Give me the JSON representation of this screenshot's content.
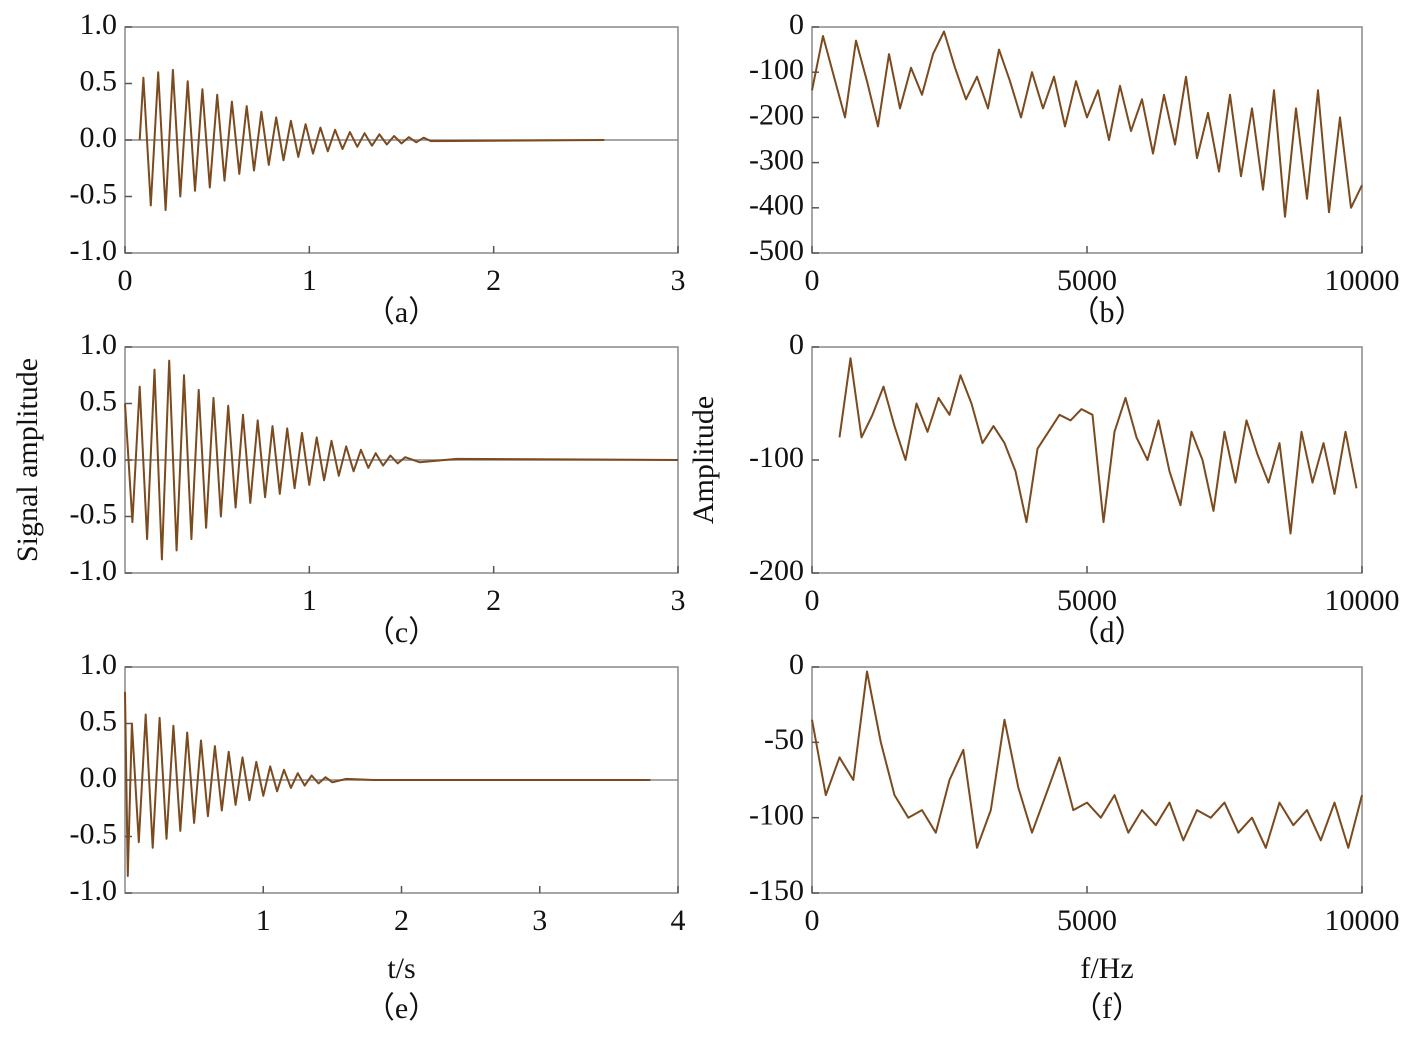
{
  "chart_data": [
    {
      "type": "line",
      "caption": "（a）",
      "color": "#7b4a1e",
      "xlim": [
        0,
        3
      ],
      "xticks": [
        0,
        1,
        2,
        3
      ],
      "ylim": [
        -1,
        1
      ],
      "yticks": [
        {
          "value": 1,
          "label": "1.0"
        },
        0.5,
        {
          "value": 0,
          "label": "0.0"
        },
        -0.5,
        {
          "value": -1,
          "label": "-1.0"
        }
      ],
      "x": [
        0.08,
        0.1,
        0.14,
        0.18,
        0.22,
        0.26,
        0.3,
        0.34,
        0.38,
        0.42,
        0.46,
        0.5,
        0.54,
        0.58,
        0.62,
        0.66,
        0.7,
        0.74,
        0.78,
        0.82,
        0.86,
        0.9,
        0.94,
        0.98,
        1.02,
        1.06,
        1.1,
        1.14,
        1.18,
        1.22,
        1.26,
        1.3,
        1.34,
        1.38,
        1.42,
        1.46,
        1.5,
        1.54,
        1.58,
        1.62,
        1.66,
        2.6
      ],
      "values": [
        0,
        0.55,
        -0.58,
        0.6,
        -0.62,
        0.62,
        -0.5,
        0.52,
        -0.45,
        0.45,
        -0.42,
        0.4,
        -0.36,
        0.34,
        -0.3,
        0.3,
        -0.27,
        0.25,
        -0.22,
        0.2,
        -0.18,
        0.17,
        -0.15,
        0.14,
        -0.12,
        0.11,
        -0.1,
        0.09,
        -0.08,
        0.07,
        -0.06,
        0.06,
        -0.05,
        0.05,
        -0.04,
        0.035,
        -0.03,
        0.025,
        -0.02,
        0.02,
        -0.01,
        0
      ]
    },
    {
      "type": "line",
      "caption": "（b）",
      "color": "#7b4a1e",
      "xlim": [
        0,
        10000
      ],
      "xticks": [
        0,
        5000,
        10000
      ],
      "ylim": [
        -500,
        0
      ],
      "yticks": [
        0,
        -100,
        -200,
        -300,
        -400,
        -500
      ],
      "x": [
        0,
        200,
        400,
        600,
        800,
        1000,
        1200,
        1400,
        1600,
        1800,
        2000,
        2200,
        2400,
        2600,
        2800,
        3000,
        3200,
        3400,
        3600,
        3800,
        4000,
        4200,
        4400,
        4600,
        4800,
        5000,
        5200,
        5400,
        5600,
        5800,
        6000,
        6200,
        6400,
        6600,
        6800,
        7000,
        7200,
        7400,
        7600,
        7800,
        8000,
        8200,
        8400,
        8600,
        8800,
        9000,
        9200,
        9400,
        9600,
        9800,
        10000
      ],
      "values": [
        -140,
        -20,
        -110,
        -200,
        -30,
        -120,
        -220,
        -60,
        -180,
        -90,
        -150,
        -60,
        -10,
        -90,
        -160,
        -110,
        -180,
        -50,
        -120,
        -200,
        -100,
        -180,
        -110,
        -220,
        -120,
        -200,
        -140,
        -250,
        -130,
        -230,
        -160,
        -280,
        -150,
        -260,
        -110,
        -290,
        -190,
        -320,
        -150,
        -330,
        -180,
        -360,
        -140,
        -420,
        -180,
        -380,
        -140,
        -410,
        -200,
        -400,
        -350
      ]
    },
    {
      "type": "line",
      "caption": "（c）",
      "color": "#7b4a1e",
      "ylabel": "Signal amplitude",
      "xlim": [
        0,
        3
      ],
      "xticks": [
        1,
        2,
        3
      ],
      "ylim": [
        -1,
        1
      ],
      "yticks": [
        {
          "value": 1,
          "label": "1.0"
        },
        0.5,
        {
          "value": 0,
          "label": "0.0"
        },
        -0.5,
        {
          "value": -1,
          "label": "-1.0"
        }
      ],
      "x": [
        0,
        0.04,
        0.08,
        0.12,
        0.16,
        0.2,
        0.24,
        0.28,
        0.32,
        0.36,
        0.4,
        0.44,
        0.48,
        0.52,
        0.56,
        0.6,
        0.64,
        0.68,
        0.72,
        0.76,
        0.8,
        0.84,
        0.88,
        0.92,
        0.96,
        1.0,
        1.04,
        1.08,
        1.12,
        1.16,
        1.2,
        1.24,
        1.28,
        1.32,
        1.36,
        1.4,
        1.44,
        1.48,
        1.52,
        1.6,
        1.8,
        3.0
      ],
      "values": [
        0.5,
        -0.55,
        0.65,
        -0.7,
        0.8,
        -0.88,
        0.88,
        -0.8,
        0.75,
        -0.7,
        0.62,
        -0.6,
        0.55,
        -0.5,
        0.48,
        -0.42,
        0.4,
        -0.38,
        0.35,
        -0.33,
        0.3,
        -0.3,
        0.28,
        -0.25,
        0.24,
        -0.22,
        0.2,
        -0.18,
        0.17,
        -0.14,
        0.12,
        -0.1,
        0.09,
        -0.07,
        0.06,
        -0.05,
        0.04,
        -0.03,
        0.025,
        -0.02,
        0.01,
        0
      ]
    },
    {
      "type": "line",
      "caption": "（d）",
      "color": "#7b4a1e",
      "ylabel": "Amplitude",
      "xlim": [
        0,
        10000
      ],
      "xticks": [
        0,
        5000,
        10000
      ],
      "ylim": [
        -200,
        0
      ],
      "yticks": [
        0,
        -100,
        -200
      ],
      "x": [
        500,
        700,
        900,
        1100,
        1300,
        1500,
        1700,
        1900,
        2100,
        2300,
        2500,
        2700,
        2900,
        3100,
        3300,
        3500,
        3700,
        3900,
        4100,
        4300,
        4500,
        4700,
        4900,
        5100,
        5300,
        5500,
        5700,
        5900,
        6100,
        6300,
        6500,
        6700,
        6900,
        7100,
        7300,
        7500,
        7700,
        7900,
        8100,
        8300,
        8500,
        8700,
        8900,
        9100,
        9300,
        9500,
        9700,
        9900
      ],
      "values": [
        -80,
        -10,
        -80,
        -60,
        -35,
        -70,
        -100,
        -50,
        -75,
        -45,
        -60,
        -25,
        -50,
        -85,
        -70,
        -85,
        -110,
        -155,
        -90,
        -75,
        -60,
        -65,
        -55,
        -60,
        -155,
        -75,
        -45,
        -80,
        -100,
        -65,
        -110,
        -140,
        -75,
        -100,
        -145,
        -75,
        -120,
        -65,
        -95,
        -120,
        -85,
        -165,
        -75,
        -120,
        -85,
        -130,
        -75,
        -125
      ]
    },
    {
      "type": "line",
      "caption": "（e）",
      "color": "#7b4a1e",
      "xlabel": "t/s",
      "xlim": [
        0,
        4
      ],
      "xticks": [
        1,
        2,
        3,
        4
      ],
      "ylim": [
        -1,
        1
      ],
      "yticks": [
        {
          "value": 1,
          "label": "1.0"
        },
        0.5,
        {
          "value": 0,
          "label": "0.0"
        },
        -0.5,
        {
          "value": -1,
          "label": "-1.0"
        }
      ],
      "x": [
        0,
        0.02,
        0.05,
        0.1,
        0.15,
        0.2,
        0.25,
        0.3,
        0.35,
        0.4,
        0.45,
        0.5,
        0.55,
        0.6,
        0.65,
        0.7,
        0.75,
        0.8,
        0.85,
        0.9,
        0.95,
        1.0,
        1.05,
        1.1,
        1.15,
        1.2,
        1.25,
        1.3,
        1.35,
        1.4,
        1.45,
        1.5,
        1.6,
        1.8,
        3.8
      ],
      "values": [
        0.78,
        -0.85,
        0.5,
        -0.55,
        0.58,
        -0.6,
        0.55,
        -0.52,
        0.48,
        -0.45,
        0.42,
        -0.38,
        0.35,
        -0.32,
        0.3,
        -0.27,
        0.25,
        -0.22,
        0.2,
        -0.18,
        0.16,
        -0.14,
        0.12,
        -0.1,
        0.09,
        -0.07,
        0.06,
        -0.05,
        0.04,
        -0.03,
        0.025,
        -0.02,
        0.01,
        0,
        0
      ]
    },
    {
      "type": "line",
      "caption": "（f）",
      "color": "#7b4a1e",
      "xlabel": "f/Hz",
      "xlim": [
        0,
        10000
      ],
      "xticks": [
        0,
        5000,
        10000
      ],
      "ylim": [
        -150,
        0
      ],
      "yticks": [
        0,
        -50,
        -100,
        -150
      ],
      "x": [
        0,
        250,
        500,
        750,
        1000,
        1250,
        1500,
        1750,
        2000,
        2250,
        2500,
        2750,
        3000,
        3250,
        3500,
        3750,
        4000,
        4250,
        4500,
        4750,
        5000,
        5250,
        5500,
        5750,
        6000,
        6250,
        6500,
        6750,
        7000,
        7250,
        7500,
        7750,
        8000,
        8250,
        8500,
        8750,
        9000,
        9250,
        9500,
        9750,
        10000
      ],
      "values": [
        -35,
        -85,
        -60,
        -75,
        -3,
        -50,
        -85,
        -100,
        -95,
        -110,
        -75,
        -55,
        -120,
        -95,
        -35,
        -80,
        -110,
        -85,
        -60,
        -95,
        -90,
        -100,
        -85,
        -110,
        -95,
        -105,
        -90,
        -115,
        -95,
        -100,
        -90,
        -110,
        -100,
        -120,
        -90,
        -105,
        -95,
        -115,
        -90,
        -120,
        -85
      ]
    }
  ]
}
